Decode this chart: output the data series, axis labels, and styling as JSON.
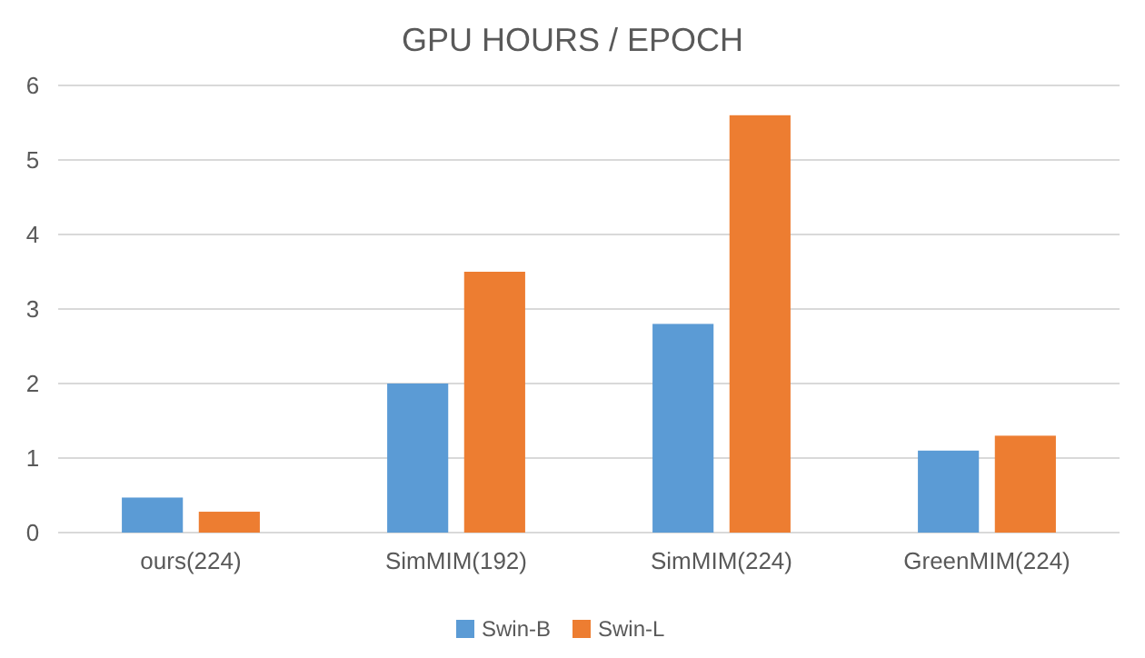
{
  "chart_data": {
    "type": "bar",
    "title": "GPU HOURS / EPOCH",
    "categories": [
      "ours(224)",
      "SimMIM(192)",
      "SimMIM(224)",
      "GreenMIM(224)"
    ],
    "series": [
      {
        "name": "Swin-B",
        "color": "#5b9bd5",
        "values": [
          0.47,
          2.0,
          2.8,
          1.1
        ]
      },
      {
        "name": "Swin-L",
        "color": "#ed7d31",
        "values": [
          0.28,
          3.5,
          5.6,
          1.3
        ]
      }
    ],
    "ylim": [
      0,
      6
    ],
    "yticks": [
      0,
      1,
      2,
      3,
      4,
      5,
      6
    ],
    "grid": "y",
    "legend": "bottom"
  }
}
